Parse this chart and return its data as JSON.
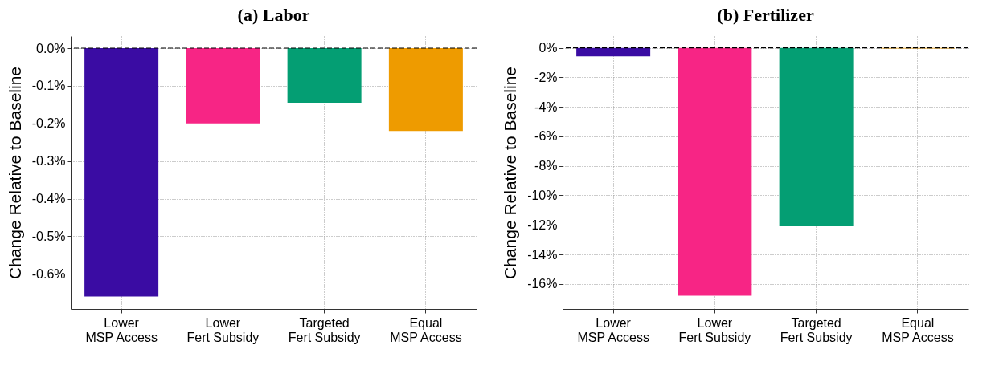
{
  "chart_data": [
    {
      "type": "bar",
      "title": "(a) Labor",
      "ylabel": "Change Relative to Baseline",
      "categories": [
        "Lower\nMSP Access",
        "Lower\nFert Subsidy",
        "Targeted\nFert Subsidy",
        "Equal\nMSP Access"
      ],
      "values": [
        -0.66,
        -0.2,
        -0.145,
        -0.22
      ],
      "colors": [
        "#3a0ca3",
        "#f72585",
        "#049e73",
        "#ee9b00"
      ],
      "ylim": [
        -0.693,
        0.032
      ],
      "yticks": [
        {
          "value": 0,
          "label": "0.0%"
        },
        {
          "value": -0.1,
          "label": "-0.1%"
        },
        {
          "value": -0.2,
          "label": "-0.2%"
        },
        {
          "value": -0.3,
          "label": "-0.3%"
        },
        {
          "value": -0.4,
          "label": "-0.4%"
        },
        {
          "value": -0.5,
          "label": "-0.5%"
        },
        {
          "value": -0.6,
          "label": "-0.6%"
        }
      ],
      "ref_lines": [
        {
          "axis": "y",
          "value": 0,
          "color": "#000000",
          "line_style": "dashed"
        }
      ],
      "grid": true
    },
    {
      "type": "bar",
      "title": "(b) Fertilizer",
      "ylabel": "Change Relative to Baseline",
      "categories": [
        "Lower\nMSP Access",
        "Lower\nFert Subsidy",
        "Targeted\nFert Subsidy",
        "Equal\nMSP Access"
      ],
      "values": [
        -0.58,
        -16.8,
        -12.1,
        -0.05
      ],
      "colors": [
        "#3a0ca3",
        "#f72585",
        "#049e73",
        "#ee9b00"
      ],
      "ylim": [
        -17.7,
        0.8
      ],
      "yticks": [
        {
          "value": 0,
          "label": "0%"
        },
        {
          "value": -2,
          "label": "-2%"
        },
        {
          "value": -4,
          "label": "-4%"
        },
        {
          "value": -6,
          "label": "-6%"
        },
        {
          "value": -8,
          "label": "-8%"
        },
        {
          "value": -10,
          "label": "-10%"
        },
        {
          "value": -12,
          "label": "-12%"
        },
        {
          "value": -14,
          "label": "-14%"
        },
        {
          "value": -16,
          "label": "-16%"
        }
      ],
      "ref_lines": [
        {
          "axis": "y",
          "value": 0,
          "color": "#000000",
          "line_style": "dashed"
        }
      ],
      "grid": true
    }
  ]
}
